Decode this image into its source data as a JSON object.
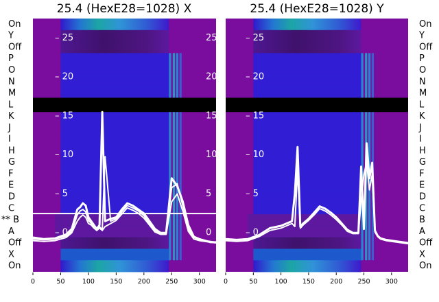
{
  "chart_data": [
    {
      "type": "heatmap",
      "title": "25.4 (HexE28=1028) X",
      "row_labels": [
        "On",
        "Y",
        "Off",
        "P",
        "O",
        "N",
        "M",
        "L",
        "K",
        "J",
        "I",
        "H",
        "G",
        "F",
        "E",
        "D",
        "C",
        "** B",
        "A",
        "Off",
        "X",
        "On"
      ],
      "marked_row": "** B",
      "x_ticks": [
        0,
        50,
        100,
        150,
        200,
        250,
        300
      ],
      "xlim": [
        0,
        330
      ],
      "y_ticks": [
        0,
        5,
        10,
        15,
        20,
        25
      ],
      "ylim": [
        -5,
        27.5
      ],
      "bands": [
        {
          "row": "On",
          "color": "#15a8c0"
        },
        {
          "row": "Y",
          "color": "#3a1a6a"
        },
        {
          "row": "Off",
          "color": "#30105a"
        },
        {
          "row": "P",
          "color": "#2a1ad0"
        },
        {
          "row": "O",
          "color": "#2a20d8"
        },
        {
          "row": "N",
          "color": "#2a20d8"
        },
        {
          "row": "M",
          "color": "#2818c8"
        },
        {
          "row": "L",
          "color": "#000000"
        },
        {
          "row": "K",
          "color": "#2818c8"
        },
        {
          "row": "J",
          "color": "#2a20d8"
        },
        {
          "row": "I",
          "color": "#2a20d8"
        },
        {
          "row": "H",
          "color": "#2a20d8"
        },
        {
          "row": "G",
          "color": "#2a20d8"
        },
        {
          "row": "F",
          "color": "#2a20d8"
        },
        {
          "row": "E",
          "color": "#2a20d8"
        },
        {
          "row": "D",
          "color": "#2a20d8"
        },
        {
          "row": "C",
          "color": "#2a20d8"
        },
        {
          "row": "** B",
          "color": "#5a1aa0"
        },
        {
          "row": "A",
          "color": "#5a1aa0"
        },
        {
          "row": "Off",
          "color": "#2a1ad8"
        },
        {
          "row": "X",
          "color": "#1560d0"
        },
        {
          "row": "On",
          "color": "#15a8c0"
        }
      ],
      "series": [
        {
          "x": [
            0,
            20,
            40,
            60,
            70,
            80,
            85,
            90,
            95,
            100,
            105,
            110,
            115,
            120,
            125,
            130,
            140,
            150,
            160,
            170,
            180,
            190,
            200,
            210,
            220,
            230,
            240,
            250,
            260,
            270,
            280,
            290,
            300,
            310,
            320,
            330
          ],
          "y": [
            -0.6,
            -0.8,
            -0.7,
            -0.2,
            0.5,
            3.0,
            3.3,
            3.8,
            3.5,
            2.0,
            1.5,
            1.0,
            0.5,
            1.0,
            15.5,
            1.5,
            1.8,
            2.0,
            3.0,
            3.8,
            3.5,
            3.0,
            2.5,
            1.5,
            0.5,
            0.0,
            0.0,
            7.0,
            6.0,
            4.0,
            1.0,
            -0.5,
            -0.8,
            -1.0,
            -1.2,
            -1.2
          ]
        },
        {
          "x": [
            0,
            20,
            40,
            60,
            70,
            80,
            85,
            90,
            95,
            100,
            105,
            110,
            115,
            120,
            125,
            130,
            140,
            150,
            160,
            170,
            180,
            190,
            200,
            210,
            220,
            230,
            240,
            250,
            260,
            270,
            280,
            290,
            300,
            310,
            320,
            330
          ],
          "y": [
            -0.8,
            -0.9,
            -0.8,
            -0.4,
            0.2,
            2.3,
            2.8,
            3.0,
            2.7,
            1.6,
            1.2,
            0.8,
            0.4,
            0.8,
            0.4,
            9.8,
            1.5,
            1.8,
            2.7,
            3.5,
            3.2,
            2.8,
            2.2,
            1.2,
            0.3,
            -0.1,
            -0.1,
            5.8,
            6.3,
            3.5,
            0.5,
            -0.6,
            -0.9,
            -1.0,
            -1.1,
            -1.2
          ]
        },
        {
          "x": [
            0,
            20,
            40,
            60,
            70,
            80,
            85,
            90,
            95,
            100,
            105,
            110,
            115,
            120,
            125,
            130,
            140,
            150,
            160,
            170,
            180,
            190,
            200,
            210,
            220,
            230,
            240,
            250,
            260,
            270,
            280,
            290,
            300,
            310,
            320,
            330
          ],
          "y": [
            -1.0,
            -1.1,
            -1.0,
            -0.6,
            0.0,
            1.5,
            2.0,
            2.3,
            2.0,
            1.2,
            1.0,
            0.6,
            0.3,
            0.6,
            0.3,
            0.8,
            1.2,
            1.6,
            2.4,
            3.2,
            2.9,
            2.5,
            1.9,
            1.0,
            0.1,
            -0.2,
            -0.2,
            4.0,
            5.0,
            2.8,
            0.2,
            -0.8,
            -1.0,
            -1.1,
            -1.2,
            -1.3
          ]
        }
      ]
    },
    {
      "type": "heatmap",
      "title": "25.4 (HexE28=1028) Y",
      "row_labels": [
        "On",
        "Y",
        "Off",
        "P",
        "O",
        "N",
        "M",
        "L",
        "K",
        "J",
        "I",
        "H",
        "G",
        "F",
        "E",
        "D",
        "C",
        "B",
        "A",
        "Off",
        "X",
        "On"
      ],
      "x_ticks": [
        0,
        50,
        100,
        150,
        200,
        250,
        300
      ],
      "xlim": [
        0,
        330
      ],
      "y_ticks": [
        0,
        5,
        10,
        15,
        20,
        25
      ],
      "ylim": [
        -5,
        27.5
      ],
      "series": [
        {
          "x": [
            0,
            20,
            40,
            60,
            80,
            100,
            110,
            120,
            125,
            130,
            135,
            140,
            150,
            160,
            170,
            180,
            190,
            200,
            210,
            220,
            230,
            240,
            245,
            250,
            255,
            260,
            265,
            270,
            275,
            280,
            290,
            300,
            310,
            320,
            330
          ],
          "y": [
            -0.8,
            -0.9,
            -0.8,
            -0.3,
            0.6,
            0.9,
            1.2,
            1.5,
            5.0,
            11.0,
            0.8,
            1.2,
            1.8,
            2.6,
            3.4,
            3.1,
            2.6,
            2.0,
            1.2,
            0.4,
            0.0,
            0.0,
            8.5,
            0.5,
            11.5,
            7.0,
            9.0,
            0.3,
            -0.4,
            -0.7,
            -0.9,
            -1.0,
            -1.1,
            -1.2,
            -1.3
          ]
        },
        {
          "x": [
            0,
            20,
            40,
            60,
            80,
            100,
            110,
            120,
            125,
            130,
            135,
            140,
            150,
            160,
            170,
            180,
            190,
            200,
            210,
            220,
            230,
            240,
            245,
            250,
            255,
            260,
            265,
            270,
            275,
            280,
            290,
            300,
            310,
            320,
            330
          ],
          "y": [
            -1.0,
            -1.1,
            -1.0,
            -0.5,
            0.3,
            0.6,
            0.9,
            1.2,
            0.8,
            8.0,
            0.6,
            1.0,
            1.6,
            2.3,
            3.1,
            2.8,
            2.3,
            1.7,
            1.0,
            0.2,
            -0.1,
            -0.1,
            4.0,
            7.5,
            9.0,
            5.5,
            7.5,
            0.1,
            -0.5,
            -0.8,
            -1.0,
            -1.1,
            -1.2,
            -1.3,
            -1.4
          ]
        }
      ]
    }
  ]
}
